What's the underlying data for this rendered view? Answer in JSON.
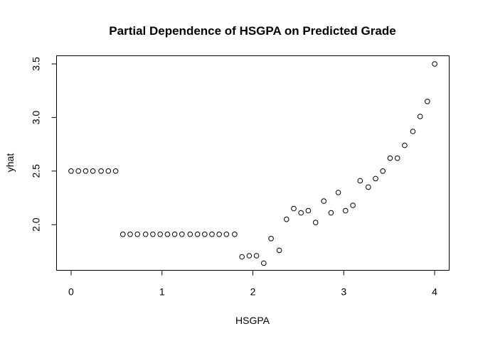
{
  "chart_data": {
    "type": "scatter",
    "title": "Partial Dependence of HSGPA on Predicted Grade",
    "xlabel": "HSGPA",
    "ylabel": "yhat",
    "xlim": [
      -0.16,
      4.16
    ],
    "ylim": [
      1.574,
      3.576
    ],
    "x_ticks": [
      0,
      1,
      2,
      3,
      4
    ],
    "y_ticks": [
      2.0,
      2.5,
      3.0,
      3.5
    ],
    "x_tick_labels": [
      "0",
      "1",
      "2",
      "3",
      "4"
    ],
    "y_tick_labels": [
      "2.0",
      "2.5",
      "3.0",
      "3.5"
    ],
    "grid": false,
    "legend": "none",
    "colors": {
      "points": "#000000",
      "axes": "#000000",
      "background": "#ffffff"
    },
    "points": [
      {
        "x": 0.0,
        "y": 2.5
      },
      {
        "x": 0.08,
        "y": 2.5
      },
      {
        "x": 0.16,
        "y": 2.5
      },
      {
        "x": 0.24,
        "y": 2.5
      },
      {
        "x": 0.33,
        "y": 2.5
      },
      {
        "x": 0.41,
        "y": 2.5
      },
      {
        "x": 0.49,
        "y": 2.5
      },
      {
        "x": 0.57,
        "y": 1.91
      },
      {
        "x": 0.65,
        "y": 1.91
      },
      {
        "x": 0.73,
        "y": 1.91
      },
      {
        "x": 0.82,
        "y": 1.91
      },
      {
        "x": 0.9,
        "y": 1.91
      },
      {
        "x": 0.98,
        "y": 1.91
      },
      {
        "x": 1.06,
        "y": 1.91
      },
      {
        "x": 1.14,
        "y": 1.91
      },
      {
        "x": 1.22,
        "y": 1.91
      },
      {
        "x": 1.31,
        "y": 1.91
      },
      {
        "x": 1.39,
        "y": 1.91
      },
      {
        "x": 1.47,
        "y": 1.91
      },
      {
        "x": 1.55,
        "y": 1.91
      },
      {
        "x": 1.63,
        "y": 1.91
      },
      {
        "x": 1.71,
        "y": 1.91
      },
      {
        "x": 1.8,
        "y": 1.91
      },
      {
        "x": 1.88,
        "y": 1.7
      },
      {
        "x": 1.96,
        "y": 1.71
      },
      {
        "x": 2.04,
        "y": 1.71
      },
      {
        "x": 2.12,
        "y": 1.64
      },
      {
        "x": 2.2,
        "y": 1.87
      },
      {
        "x": 2.29,
        "y": 1.76
      },
      {
        "x": 2.37,
        "y": 2.05
      },
      {
        "x": 2.45,
        "y": 2.15
      },
      {
        "x": 2.53,
        "y": 2.11
      },
      {
        "x": 2.61,
        "y": 2.13
      },
      {
        "x": 2.69,
        "y": 2.02
      },
      {
        "x": 2.78,
        "y": 2.22
      },
      {
        "x": 2.86,
        "y": 2.11
      },
      {
        "x": 2.94,
        "y": 2.3
      },
      {
        "x": 3.02,
        "y": 2.13
      },
      {
        "x": 3.1,
        "y": 2.18
      },
      {
        "x": 3.18,
        "y": 2.41
      },
      {
        "x": 3.27,
        "y": 2.35
      },
      {
        "x": 3.35,
        "y": 2.43
      },
      {
        "x": 3.43,
        "y": 2.5
      },
      {
        "x": 3.51,
        "y": 2.62
      },
      {
        "x": 3.59,
        "y": 2.62
      },
      {
        "x": 3.67,
        "y": 2.74
      },
      {
        "x": 3.76,
        "y": 2.87
      },
      {
        "x": 3.84,
        "y": 3.01
      },
      {
        "x": 3.92,
        "y": 3.15
      },
      {
        "x": 4.0,
        "y": 3.5
      }
    ]
  }
}
